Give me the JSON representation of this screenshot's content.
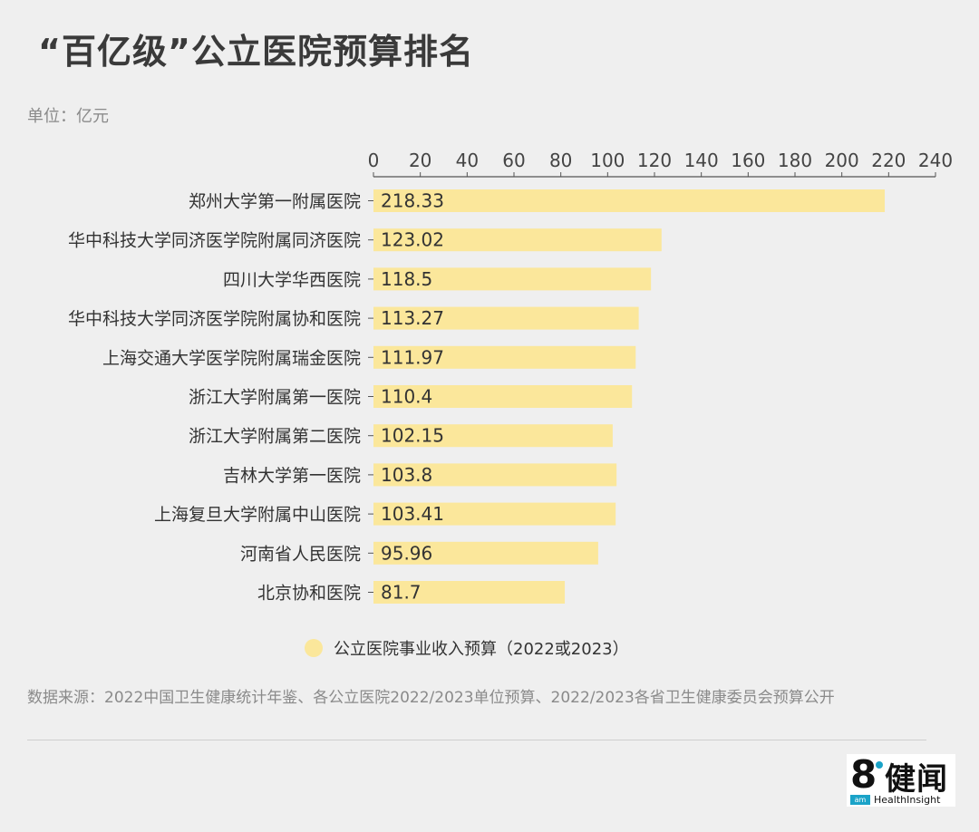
{
  "header": {
    "title": "“百亿级”公立医院预算排名",
    "unit": "单位：亿元"
  },
  "chart_data": {
    "type": "bar",
    "orientation": "horizontal",
    "title": "“百亿级”公立医院预算排名",
    "xlabel": "",
    "ylabel": "",
    "xlim": [
      0,
      240
    ],
    "ticks": [
      "0",
      "20",
      "40",
      "60",
      "80",
      "100",
      "120",
      "140",
      "160",
      "180",
      "200",
      "220",
      "240"
    ],
    "tick_values": [
      0,
      20,
      40,
      60,
      80,
      100,
      120,
      140,
      160,
      180,
      200,
      220,
      240
    ],
    "categories": [
      "郑州大学第一附属医院",
      "华中科技大学同济医学院附属同济医院",
      "四川大学华西医院",
      "华中科技大学同济医学院附属协和医院",
      "上海交通大学医学院附属瑞金医院",
      "浙江大学附属第一医院",
      "浙江大学附属第二医院",
      "吉林大学第一医院",
      "上海复旦大学附属中山医院",
      "河南省人民医院",
      "北京协和医院"
    ],
    "values": [
      218.33,
      123.02,
      118.5,
      113.27,
      111.97,
      110.4,
      102.15,
      103.8,
      103.41,
      95.96,
      81.7
    ],
    "value_labels": [
      "218.33",
      "123.02",
      "118.5",
      "113.27",
      "111.97",
      "110.4",
      "102.15",
      "103.8",
      "103.41",
      "95.96",
      "81.7"
    ],
    "series_name": "公立医院事业收入预算（2022或2023）",
    "legend_position": "bottom",
    "grid": false,
    "bar_color": "#fbe79b"
  },
  "legend": {
    "label": "公立医院事业收入预算（2022或2023）",
    "color": "#fbe79b"
  },
  "footer": {
    "source": "数据来源：2022中国卫生健康统计年鉴、各公立医院2022/2023单位预算、2022/2023各省卫生健康委员会预算公开"
  },
  "logo": {
    "mark": "8",
    "name_cn": "健闻",
    "tag": "am",
    "name_en": "HealthInsight"
  }
}
